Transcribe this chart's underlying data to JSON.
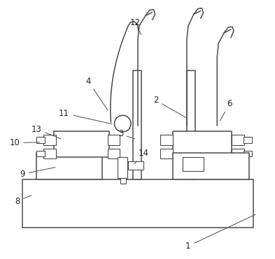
{
  "bg_color": "#ffffff",
  "line_color": "#4a4a4a",
  "lw": 1.1,
  "lw_thin": 0.8,
  "fig_width": 3.93,
  "fig_height": 3.71,
  "dpi": 100
}
